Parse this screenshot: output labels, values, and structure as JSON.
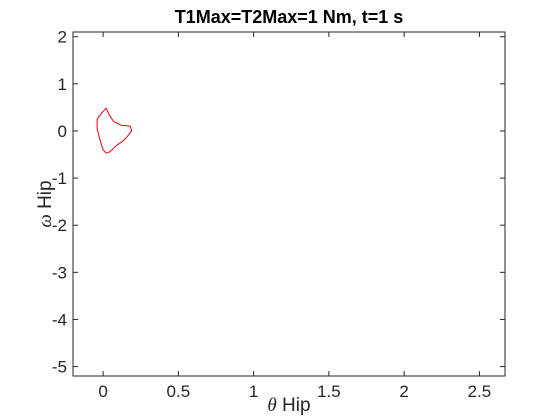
{
  "chart_data": {
    "type": "line",
    "title": "T1Max=T2Max=1 Nm, t=1 s",
    "xlabel": {
      "symbol": "θ",
      "text": " Hip"
    },
    "ylabel": {
      "symbol": "ω",
      "text": " Hip"
    },
    "xlim": [
      -0.2,
      2.67
    ],
    "ylim": [
      -5.2,
      2.1
    ],
    "x_ticks": [
      0,
      0.5,
      1,
      1.5,
      2,
      2.5
    ],
    "x_tick_labels": [
      "0",
      "0.5",
      "1",
      "1.5",
      "2",
      "2.5"
    ],
    "y_ticks": [
      2,
      1,
      0,
      -1,
      -2,
      -3,
      -4,
      -5
    ],
    "y_tick_labels": [
      "2",
      "1",
      "0",
      "-1",
      "-2",
      "-3",
      "-4",
      "-5"
    ],
    "grid": false,
    "series": [
      {
        "color": "#e8000b",
        "x": [
          0.0,
          -0.04,
          -0.04,
          -0.02,
          0.0,
          0.02,
          0.04,
          0.06,
          0.09,
          0.13,
          0.16,
          0.19,
          0.18,
          0.12,
          0.07,
          0.04,
          0.02,
          0.0
        ],
        "y": [
          0.42,
          0.25,
          0.05,
          -0.2,
          -0.4,
          -0.47,
          -0.45,
          -0.4,
          -0.3,
          -0.22,
          -0.12,
          0.0,
          0.1,
          0.12,
          0.2,
          0.35,
          0.48,
          0.42
        ]
      }
    ]
  }
}
